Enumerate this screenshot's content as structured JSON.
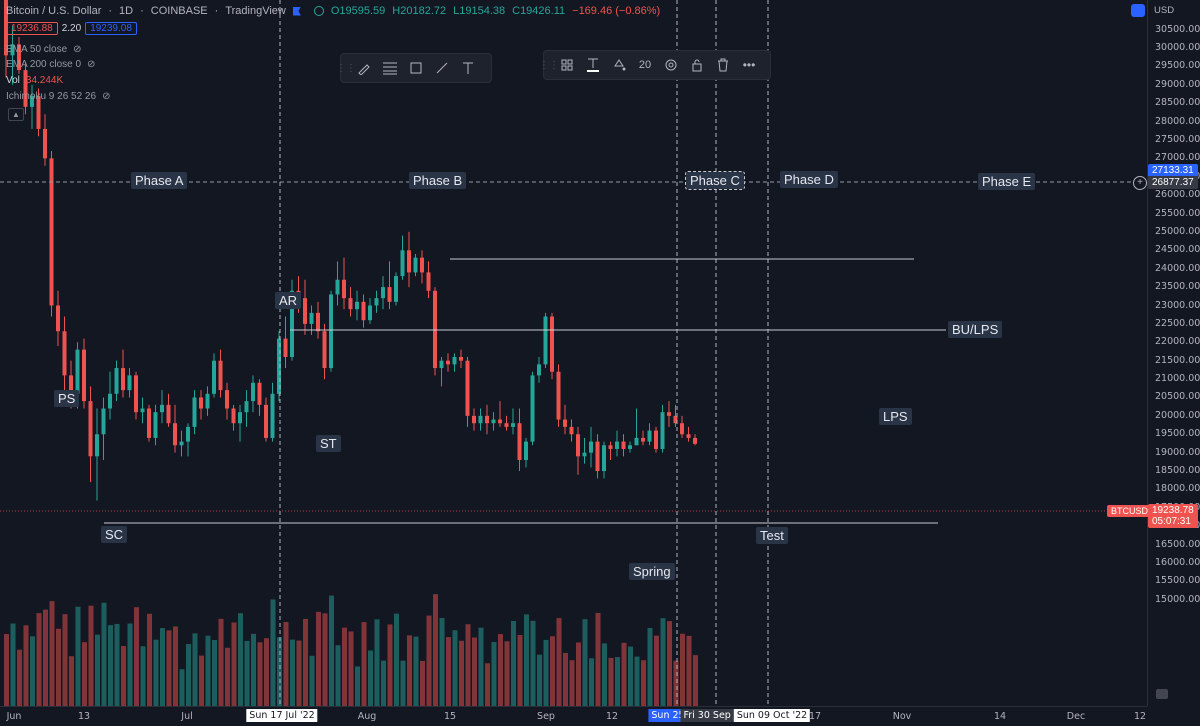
{
  "header": {
    "symbol": "Bitcoin / U.S. Dollar",
    "interval": "1D",
    "exchange": "COINBASE",
    "platform": "TradingView",
    "open": "O19595.59",
    "high": "H20182.72",
    "low": "L19154.38",
    "close": "C19426.11",
    "change": "−169.46 (−0.86%)",
    "sell_price": "19236.88",
    "spread": "2.20",
    "buy_price": "19239.08"
  },
  "indicators": {
    "ema50": "EMA 50 close",
    "ema200": "EMA 200 close 0",
    "vol_label": "Vol",
    "vol_value": "34.244K",
    "ichimoku": "Ichimoku 9 26 52 26"
  },
  "drawing_toolbar": {
    "line_width": "20"
  },
  "annotations": {
    "phase_a": "Phase A",
    "phase_b": "Phase B",
    "phase_c": "Phase C",
    "phase_d": "Phase D",
    "phase_e": "Phase E",
    "ps": "PS",
    "sc": "SC",
    "ar": "AR",
    "st": "ST",
    "spring": "Spring",
    "test": "Test",
    "bu_lps": "BU/LPS",
    "lps": "LPS"
  },
  "price_axis": {
    "currency": "USD",
    "ticks": [
      "30500.00",
      "30000.00",
      "29500.00",
      "29000.00",
      "28500.00",
      "28000.00",
      "27500.00",
      "27000.00",
      "26500.00",
      "26000.00",
      "25500.00",
      "25000.00",
      "24500.00",
      "24000.00",
      "23500.00",
      "23000.00",
      "22500.00",
      "22000.00",
      "21500.00",
      "21000.00",
      "20500.00",
      "20000.00",
      "19500.00",
      "19000.00",
      "18500.00",
      "18000.00",
      "17500.00",
      "17000.00",
      "16500.00",
      "16000.00",
      "15500.00",
      "15000.00"
    ],
    "crosshair_high": "27133.31",
    "crosshair_price": "26877.37",
    "symbol_tag": "BTCUSD",
    "last_price": "19238.78",
    "countdown": "05:07:31"
  },
  "time_axis": {
    "ticks": [
      "Jun",
      "13",
      "Jul",
      "Aug",
      "15",
      "Sep",
      "12",
      "17",
      "Nov",
      "14",
      "Dec",
      "12"
    ],
    "flag_1": "Sun 17 Jul '22",
    "flag_2": "Sun 25",
    "flag_3": "Fri 30 Sep '22",
    "flag_4": "Sun 09 Oct '22"
  },
  "colors": {
    "background": "#131722",
    "up": "#26a69a",
    "down": "#ef5350",
    "accent": "#2962ff"
  },
  "chart_data": {
    "type": "candlestick",
    "ylim": [
      14800,
      31000
    ],
    "x": [
      "Jun",
      "Jul",
      "Aug",
      "Sep",
      "Oct"
    ],
    "ohlc_daily": [
      [
        31700,
        31900,
        29200,
        29800
      ],
      [
        29800,
        30600,
        29000,
        30100
      ],
      [
        30100,
        30300,
        29300,
        29400
      ],
      [
        29400,
        29600,
        28200,
        28400
      ],
      [
        28400,
        29000,
        27800,
        28700
      ],
      [
        28700,
        28900,
        27600,
        27800
      ],
      [
        27800,
        28200,
        26800,
        27000
      ],
      [
        27000,
        27200,
        22700,
        23000
      ],
      [
        23000,
        23400,
        21900,
        22300
      ],
      [
        22300,
        22700,
        20500,
        21100
      ],
      [
        21100,
        21500,
        20200,
        20600
      ],
      [
        20600,
        22000,
        20200,
        21800
      ],
      [
        21800,
        22100,
        20200,
        20400
      ],
      [
        20400,
        20800,
        18200,
        18900
      ],
      [
        18900,
        20200,
        17700,
        19500
      ],
      [
        19500,
        20500,
        18800,
        20200
      ],
      [
        20200,
        21200,
        19900,
        20600
      ],
      [
        20600,
        21500,
        20400,
        21300
      ],
      [
        21300,
        21800,
        20500,
        20700
      ],
      [
        20700,
        21300,
        20500,
        21100
      ],
      [
        21100,
        21200,
        19900,
        20100
      ],
      [
        20100,
        20500,
        19800,
        20200
      ],
      [
        20200,
        20300,
        19300,
        19400
      ],
      [
        19400,
        20300,
        19200,
        20100
      ],
      [
        20100,
        20700,
        19800,
        20300
      ],
      [
        20300,
        20600,
        19700,
        19800
      ],
      [
        19800,
        20300,
        19000,
        19200
      ],
      [
        19200,
        19600,
        18900,
        19300
      ],
      [
        19300,
        19800,
        18900,
        19700
      ],
      [
        19700,
        20700,
        19500,
        20500
      ],
      [
        20500,
        20700,
        19900,
        20200
      ],
      [
        20200,
        20800,
        20000,
        20600
      ],
      [
        20600,
        21700,
        20500,
        21500
      ],
      [
        21500,
        21800,
        20500,
        20700
      ],
      [
        20700,
        20900,
        19900,
        20200
      ],
      [
        20200,
        20300,
        19600,
        19800
      ],
      [
        19800,
        20300,
        19300,
        20100
      ],
      [
        20100,
        20700,
        19700,
        20400
      ],
      [
        20400,
        21100,
        20100,
        20900
      ],
      [
        20900,
        21000,
        20000,
        20300
      ],
      [
        20300,
        20500,
        19300,
        19400
      ],
      [
        19400,
        20900,
        19300,
        20600
      ],
      [
        20600,
        22300,
        20400,
        22100
      ],
      [
        22100,
        22700,
        21300,
        21600
      ],
      [
        21600,
        23700,
        21500,
        23400
      ],
      [
        23400,
        23800,
        22800,
        23200
      ],
      [
        23200,
        23700,
        22200,
        22500
      ],
      [
        22500,
        23000,
        22200,
        22800
      ],
      [
        22800,
        23100,
        22100,
        22300
      ],
      [
        22300,
        22500,
        21000,
        21300
      ],
      [
        21300,
        23400,
        21200,
        23300
      ],
      [
        23300,
        24200,
        23000,
        23700
      ],
      [
        23700,
        24300,
        22900,
        23200
      ],
      [
        23200,
        23500,
        22700,
        22900
      ],
      [
        22900,
        23400,
        22600,
        23100
      ],
      [
        23100,
        23300,
        22400,
        22600
      ],
      [
        22600,
        23200,
        22500,
        23000
      ],
      [
        23000,
        23400,
        22800,
        23200
      ],
      [
        23200,
        23800,
        22900,
        23500
      ],
      [
        23500,
        24200,
        22900,
        23100
      ],
      [
        23100,
        23900,
        23000,
        23800
      ],
      [
        23800,
        24900,
        23700,
        24500
      ],
      [
        24500,
        25000,
        23500,
        23900
      ],
      [
        23900,
        24400,
        23800,
        24300
      ],
      [
        24300,
        24500,
        23600,
        23900
      ],
      [
        23900,
        24200,
        23200,
        23400
      ],
      [
        23400,
        23500,
        21100,
        21300
      ],
      [
        21300,
        21600,
        20800,
        21500
      ],
      [
        21500,
        21700,
        21200,
        21400
      ],
      [
        21400,
        21700,
        21200,
        21600
      ],
      [
        21600,
        21800,
        21300,
        21500
      ],
      [
        21500,
        21600,
        19700,
        20000
      ],
      [
        20000,
        20200,
        19600,
        19800
      ],
      [
        19800,
        20200,
        19600,
        20000
      ],
      [
        20000,
        20300,
        19500,
        19800
      ],
      [
        19800,
        20100,
        19600,
        19900
      ],
      [
        19900,
        20400,
        19700,
        19800
      ],
      [
        19800,
        20000,
        19600,
        19700
      ],
      [
        19700,
        20200,
        19500,
        19800
      ],
      [
        19800,
        20200,
        18500,
        18800
      ],
      [
        18800,
        19400,
        18600,
        19300
      ],
      [
        19300,
        21200,
        19200,
        21100
      ],
      [
        21100,
        21600,
        20900,
        21400
      ],
      [
        21400,
        22800,
        21300,
        22700
      ],
      [
        22700,
        22800,
        21000,
        21200
      ],
      [
        21200,
        21400,
        19700,
        19900
      ],
      [
        19900,
        20300,
        19500,
        19700
      ],
      [
        19700,
        19900,
        19300,
        19500
      ],
      [
        19500,
        19700,
        18400,
        18900
      ],
      [
        18900,
        19400,
        18700,
        19000
      ],
      [
        19000,
        19700,
        18600,
        19300
      ],
      [
        19300,
        19500,
        18300,
        18500
      ],
      [
        18500,
        19300,
        18300,
        19200
      ],
      [
        19200,
        19300,
        18800,
        19100
      ],
      [
        19100,
        19600,
        18900,
        19300
      ],
      [
        19300,
        19500,
        18900,
        19100
      ],
      [
        19100,
        19300,
        19000,
        19200
      ],
      [
        19200,
        20200,
        19200,
        19400
      ],
      [
        19400,
        19600,
        19200,
        19300
      ],
      [
        19300,
        19800,
        19200,
        19600
      ],
      [
        19600,
        19700,
        19000,
        19100
      ],
      [
        19100,
        20300,
        19000,
        20100
      ],
      [
        20100,
        20400,
        19700,
        20000
      ],
      [
        20000,
        20300,
        19700,
        19800
      ],
      [
        19800,
        20000,
        19400,
        19500
      ],
      [
        19500,
        19700,
        19300,
        19400
      ],
      [
        19400,
        19500,
        19200,
        19238
      ]
    ],
    "horizontal_levels": [
      25100,
      23400,
      18950
    ],
    "phase_level": 26877
  }
}
